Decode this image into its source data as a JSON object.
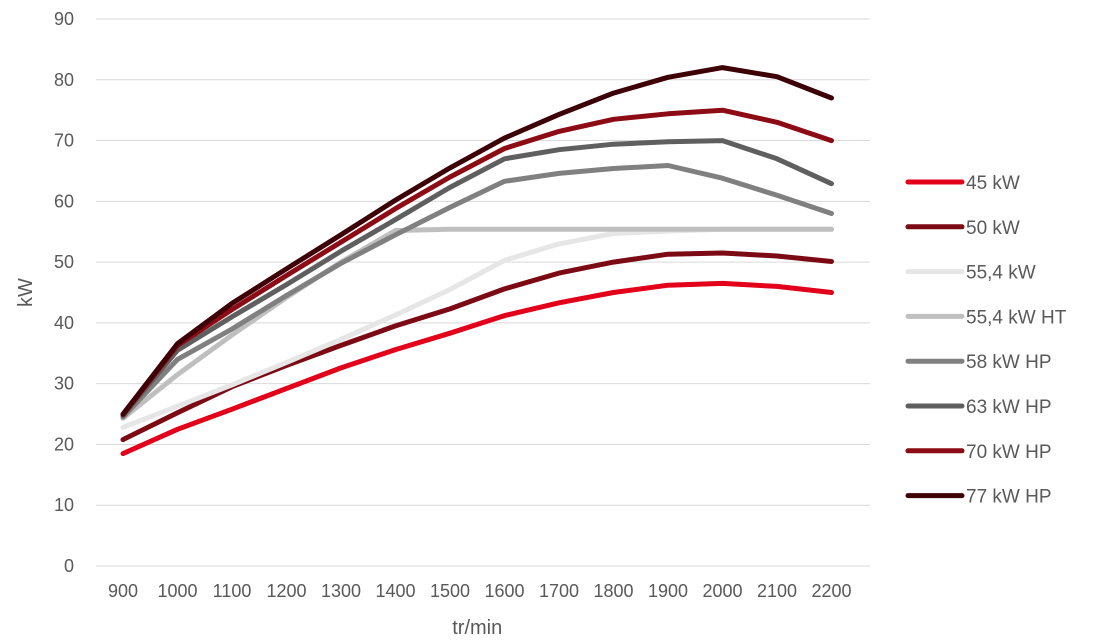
{
  "chart_data": {
    "type": "line",
    "title": "",
    "xlabel": "tr/min",
    "ylabel": "kW",
    "ylim": [
      0,
      90
    ],
    "yticks": [
      0,
      10,
      20,
      30,
      40,
      50,
      60,
      70,
      80,
      90
    ],
    "grid": true,
    "legend_position": "right",
    "categories": [
      "900",
      "1000",
      "1100",
      "1200",
      "1300",
      "1400",
      "1500",
      "1600",
      "1700",
      "1800",
      "1900",
      "2000",
      "2100",
      "2200"
    ],
    "series": [
      {
        "name": "45 kW",
        "color": "#e2001a",
        "values": [
          18.5,
          22.5,
          25.8,
          29.2,
          32.6,
          35.6,
          38.3,
          41.2,
          43.3,
          45.0,
          46.2,
          46.5,
          46.0,
          45.0
        ]
      },
      {
        "name": "50 kW",
        "color": "#7b0a14",
        "values": [
          20.8,
          25.2,
          29.5,
          33.0,
          36.3,
          39.5,
          42.3,
          45.6,
          48.2,
          50.0,
          51.3,
          51.5,
          51.0,
          50.1
        ]
      },
      {
        "name": "55,4 kW",
        "color": "#e6e6e6",
        "values": [
          22.8,
          26.3,
          29.8,
          33.5,
          37.3,
          41.3,
          45.5,
          50.3,
          53.0,
          54.7,
          55.1,
          55.4,
          55.4,
          55.4
        ]
      },
      {
        "name": "55,4 kW HT",
        "color": "#bfbfbf",
        "values": [
          24.3,
          31.5,
          38.0,
          44.2,
          50.0,
          55.2,
          55.4,
          55.4,
          55.4,
          55.4,
          55.4,
          55.4,
          55.4,
          55.4
        ]
      },
      {
        "name": "58 kW HP",
        "color": "#808080",
        "values": [
          24.5,
          34.0,
          39.0,
          44.5,
          49.8,
          54.5,
          59.0,
          63.3,
          64.6,
          65.4,
          65.9,
          63.8,
          61.0,
          58.0
        ]
      },
      {
        "name": "63 kW HP",
        "color": "#5f5f5f",
        "values": [
          24.8,
          35.5,
          41.0,
          46.3,
          51.8,
          57.0,
          62.3,
          67.0,
          68.5,
          69.4,
          69.8,
          70.0,
          67.0,
          62.9
        ]
      },
      {
        "name": "70 kW HP",
        "color": "#8c0b14",
        "values": [
          24.9,
          36.3,
          42.2,
          47.8,
          53.3,
          58.8,
          64.0,
          68.7,
          71.5,
          73.5,
          74.4,
          75.0,
          73.0,
          70.0
        ]
      },
      {
        "name": "77 kW HP",
        "color": "#3d0006",
        "values": [
          25.0,
          36.6,
          43.2,
          48.9,
          54.5,
          60.2,
          65.5,
          70.4,
          74.3,
          77.8,
          80.4,
          82.0,
          80.5,
          77.0
        ]
      }
    ]
  }
}
